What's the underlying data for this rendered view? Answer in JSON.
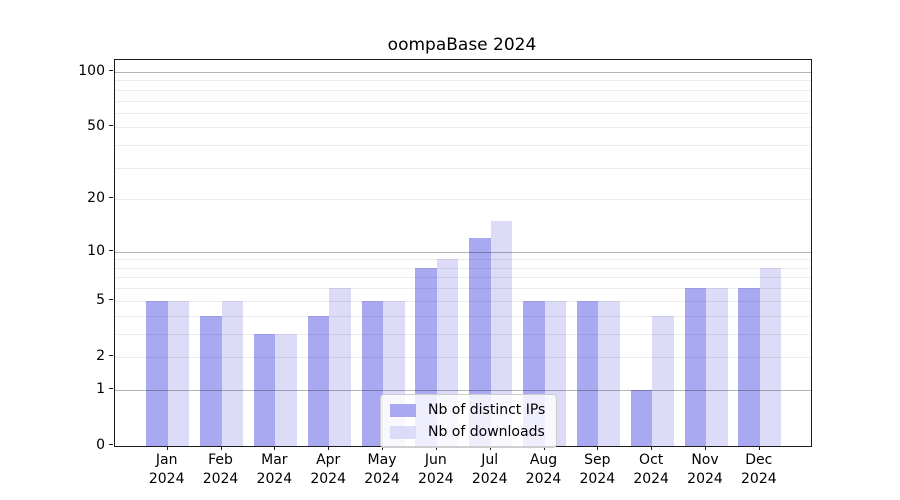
{
  "figure": {
    "title": "oompaBase 2024"
  },
  "chart_data": {
    "type": "bar",
    "title": "oompaBase 2024",
    "xlabel": "",
    "ylabel": "",
    "categories": [
      "Jan",
      "Feb",
      "Mar",
      "Apr",
      "May",
      "Jun",
      "Jul",
      "Aug",
      "Sep",
      "Oct",
      "Nov",
      "Dec"
    ],
    "category_year": "2024",
    "series": [
      {
        "name": "Nb of distinct IPs",
        "color": "#a9a9f2",
        "values": [
          5,
          4,
          3,
          4,
          5,
          8,
          12,
          5,
          5,
          1,
          6,
          6
        ]
      },
      {
        "name": "Nb of downloads",
        "color": "#dcdcf9",
        "values": [
          5,
          5,
          3,
          6,
          5,
          9,
          15,
          5,
          5,
          4,
          6,
          8
        ]
      }
    ],
    "yscale": "log1p",
    "ylim": [
      0,
      115
    ],
    "y_tick_values": [
      0,
      1,
      2,
      5,
      10,
      20,
      50,
      100
    ],
    "y_major_gridlines": [
      1,
      10,
      100
    ],
    "y_minor_gridlines": [
      2,
      3,
      4,
      5,
      6,
      7,
      8,
      9,
      20,
      30,
      40,
      50,
      60,
      70,
      80,
      90
    ],
    "grid": "on",
    "legend_position": "lower-center"
  }
}
